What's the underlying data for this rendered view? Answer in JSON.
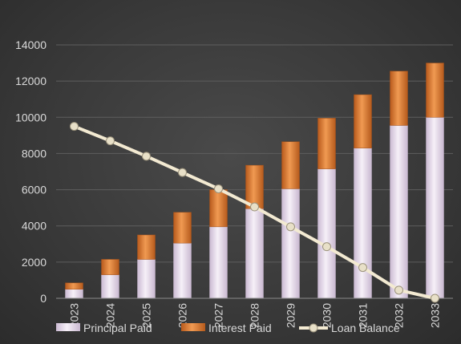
{
  "chart_data": {
    "type": "bar",
    "stacked": true,
    "categories": [
      "2023",
      "2024",
      "2025",
      "2026",
      "2027",
      "2028",
      "2029",
      "2030",
      "2031",
      "2032",
      "2033"
    ],
    "series": [
      {
        "name": "Principal Paid",
        "kind": "bar",
        "color": "#e6dcea",
        "values": [
          500,
          1300,
          2150,
          3050,
          3950,
          4950,
          6050,
          7150,
          8300,
          9550,
          10000
        ]
      },
      {
        "name": "Interest Paid",
        "kind": "bar",
        "color": "#d9772e",
        "values": [
          350,
          850,
          1350,
          1700,
          2050,
          2400,
          2600,
          2800,
          2950,
          3000,
          3000
        ]
      },
      {
        "name": "Loan Balance",
        "kind": "line",
        "color": "#f3ead2",
        "values": [
          9500,
          8700,
          7850,
          6950,
          6050,
          5050,
          3950,
          2850,
          1700,
          450,
          0
        ]
      }
    ],
    "ylim": [
      0,
      14000
    ],
    "yticks": [
      0,
      2000,
      4000,
      6000,
      8000,
      10000,
      12000,
      14000
    ],
    "grid": true,
    "legend": "bottom",
    "title": "",
    "xlabel": "",
    "ylabel": ""
  }
}
